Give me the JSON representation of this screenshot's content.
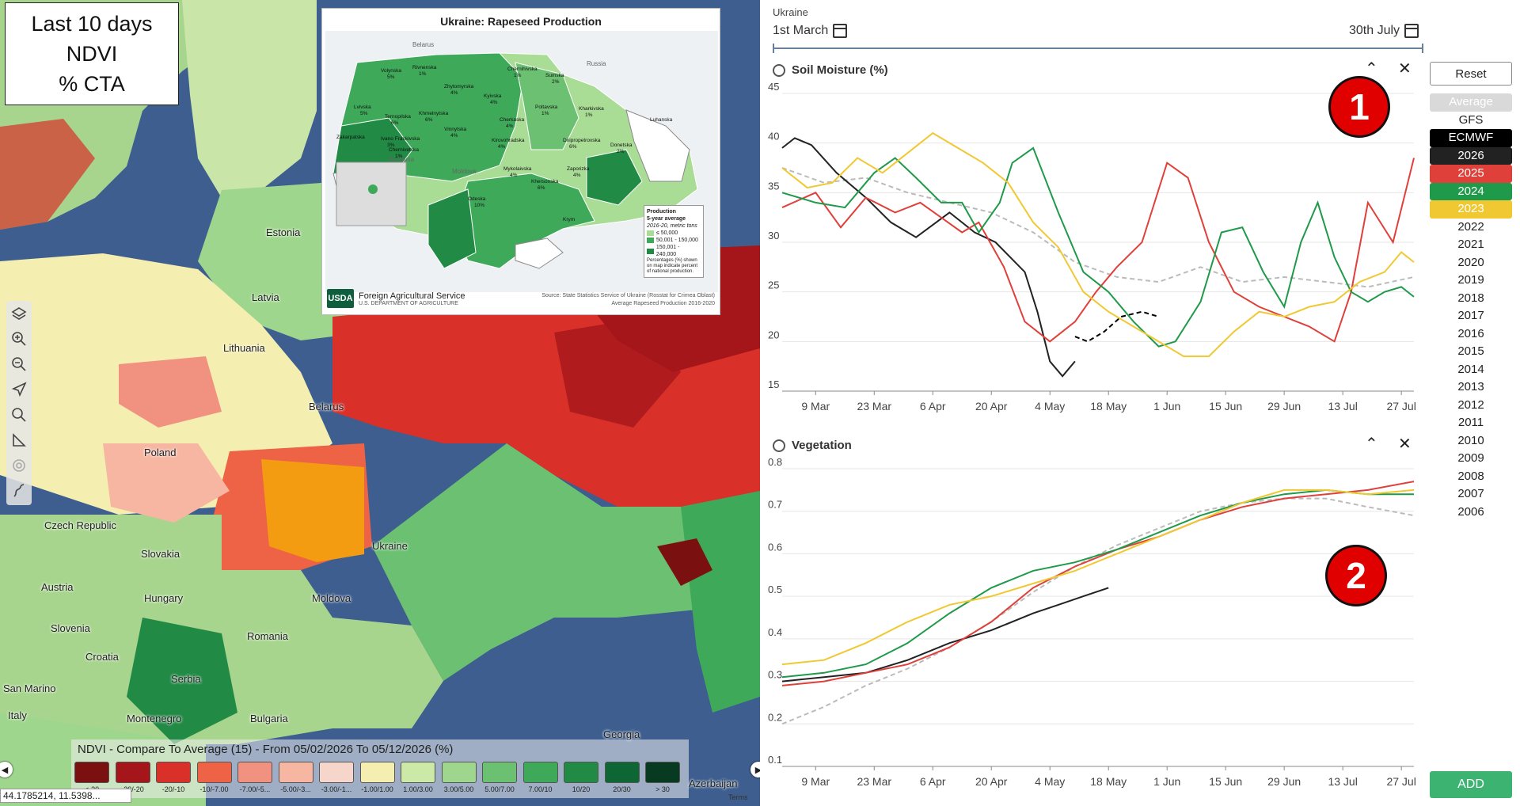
{
  "map": {
    "overlay_lines": [
      "Last 10 days",
      "NDVI",
      "% CTA"
    ],
    "inset": {
      "title": "Ukraine: Rapeseed Production",
      "regions": [
        "Volynska",
        "Rivnenska",
        "Zhytomyrska",
        "Chernihivska",
        "Sumska",
        "Lvivska",
        "Ternopilska",
        "Khmelnytska",
        "Kyivska",
        "Poltavska",
        "Kharkivska",
        "Luhanska",
        "Zakarpatska",
        "Ivano Frankivska",
        "Vinnytska",
        "Cherkaska",
        "Chernivetska",
        "Kirovohradska",
        "Dnipropetrovska",
        "Donetska",
        "Mykolaivska",
        "Zaporizka",
        "Odeska",
        "Khersonska",
        "Krym"
      ],
      "region_pcts": [
        "5%",
        "1%",
        "4%",
        "1%",
        "2%",
        "5%",
        "6%",
        "6%",
        "4%",
        "1%",
        "1%",
        "",
        "",
        "3%",
        "4%",
        "4%",
        "1%",
        "4%",
        "6%",
        "2%",
        "4%",
        "4%",
        "10%",
        "6%",
        ""
      ],
      "neighbors": [
        "Belarus",
        "Russia",
        "Romania",
        "Moldova"
      ],
      "legend": {
        "title": "Production",
        "subtitle": "5-year average",
        "unit": "2016-20, metric tons",
        "items": [
          "≤ 50,000",
          "50,001 - 150,000",
          "150,001 - 240,000"
        ],
        "note": "Percentages (%) shown on map indicate percent of national production."
      },
      "agency": "Foreign Agricultural Service",
      "agency_sub": "U.S. DEPARTMENT OF AGRICULTURE",
      "logo": "USDA",
      "source": "Source: State Statistics Service of Ukraine (Rosstat for Crimea Oblast)",
      "source2": "Average Rapeseed Production 2016-2020"
    },
    "country_labels": [
      "Estonia",
      "Latvia",
      "Lithuania",
      "Belarus",
      "Poland",
      "Ukraine",
      "Czech Republic",
      "Slovakia",
      "Austria",
      "Hungary",
      "Moldova",
      "Slovenia",
      "Croatia",
      "Romania",
      "Serbia",
      "San Marino",
      "Montenegro",
      "Bulgaria",
      "Italy",
      "Georgia",
      "Azerbaijan"
    ],
    "legend": {
      "title": "NDVI - Compare To Average (15) - From 05/02/2026 To 05/12/2026 (%)",
      "items": [
        {
          "label": "<-30",
          "color": "#7a1010"
        },
        {
          "label": "-30/-20",
          "color": "#a5161b"
        },
        {
          "label": "-20/-10",
          "color": "#d9302a"
        },
        {
          "label": "-10/-7.00",
          "color": "#ee6245"
        },
        {
          "label": "-7.00/-5...",
          "color": "#f19281"
        },
        {
          "label": "-5.00/-3...",
          "color": "#f6b6a2"
        },
        {
          "label": "-3.00/-1...",
          "color": "#f6d6cb"
        },
        {
          "label": "-1.00/1.00",
          "color": "#f4efb0"
        },
        {
          "label": "1.00/3.00",
          "color": "#cde9a8"
        },
        {
          "label": "3.00/5.00",
          "color": "#9fd68d"
        },
        {
          "label": "5.00/7.00",
          "color": "#6cc072"
        },
        {
          "label": "7.00/10",
          "color": "#3fa95a"
        },
        {
          "label": "10/20",
          "color": "#218a45"
        },
        {
          "label": "20/30",
          "color": "#0e6634"
        },
        {
          "label": "> 30",
          "color": "#083a22"
        }
      ]
    },
    "coords": "44.1785214, 11.5398...",
    "terms": "Terms"
  },
  "panel": {
    "region": "Ukraine",
    "start_date": "1st March",
    "end_date": "30th July",
    "reset": "Reset",
    "add": "ADD",
    "years": [
      {
        "label": "Average",
        "bg": "#d9d9d9",
        "fg": "#ffffff"
      },
      {
        "label": "GFS",
        "bg": "",
        "fg": "#222222"
      },
      {
        "label": "ECMWF",
        "bg": "#000000",
        "fg": "#ffffff"
      },
      {
        "label": "2026",
        "bg": "#222222",
        "fg": "#ffffff"
      },
      {
        "label": "2025",
        "bg": "#e0403a",
        "fg": "#ffffff"
      },
      {
        "label": "2024",
        "bg": "#1f9a4a",
        "fg": "#ffffff"
      },
      {
        "label": "2023",
        "bg": "#f0c832",
        "fg": "#ffffff"
      },
      {
        "label": "2022",
        "bg": "",
        "fg": "#222222"
      },
      {
        "label": "2021",
        "bg": "",
        "fg": "#222222"
      },
      {
        "label": "2020",
        "bg": "",
        "fg": "#222222"
      },
      {
        "label": "2019",
        "bg": "",
        "fg": "#222222"
      },
      {
        "label": "2018",
        "bg": "",
        "fg": "#222222"
      },
      {
        "label": "2017",
        "bg": "",
        "fg": "#222222"
      },
      {
        "label": "2016",
        "bg": "",
        "fg": "#222222"
      },
      {
        "label": "2015",
        "bg": "",
        "fg": "#222222"
      },
      {
        "label": "2014",
        "bg": "",
        "fg": "#222222"
      },
      {
        "label": "2013",
        "bg": "",
        "fg": "#222222"
      },
      {
        "label": "2012",
        "bg": "",
        "fg": "#222222"
      },
      {
        "label": "2011",
        "bg": "",
        "fg": "#222222"
      },
      {
        "label": "2010",
        "bg": "",
        "fg": "#222222"
      },
      {
        "label": "2009",
        "bg": "",
        "fg": "#222222"
      },
      {
        "label": "2008",
        "bg": "",
        "fg": "#222222"
      },
      {
        "label": "2007",
        "bg": "",
        "fg": "#222222"
      },
      {
        "label": "2006",
        "bg": "",
        "fg": "#222222"
      }
    ],
    "badges": [
      "1",
      "2"
    ]
  },
  "chart_data": [
    {
      "type": "line",
      "title": "Soil Moisture (%)",
      "x_ticks": [
        "9 Mar",
        "23 Mar",
        "6 Apr",
        "20 Apr",
        "4 May",
        "18 May",
        "1 Jun",
        "15 Jun",
        "29 Jun",
        "13 Jul",
        "27 Jul"
      ],
      "x_tick_days": [
        8,
        22,
        36,
        50,
        64,
        78,
        92,
        106,
        120,
        134,
        148
      ],
      "x_range_days": [
        0,
        151
      ],
      "ylim": [
        15,
        45
      ],
      "y_ticks": [
        15,
        20,
        25,
        30,
        35,
        40,
        45
      ],
      "series": [
        {
          "name": "Average",
          "color": "#bbbbbb",
          "dash": "6,4",
          "x": [
            0,
            10,
            20,
            30,
            40,
            50,
            60,
            70,
            80,
            90,
            100,
            110,
            120,
            130,
            140,
            151
          ],
          "y": [
            37.5,
            36,
            36.5,
            35,
            34,
            33,
            31,
            28,
            26.5,
            26,
            27.5,
            26,
            26.5,
            26,
            25.5,
            26.5
          ]
        },
        {
          "name": "2026",
          "color": "#222222",
          "dash": "",
          "x": [
            0,
            3,
            7,
            13,
            20,
            26,
            32,
            40,
            46,
            51,
            58,
            61,
            64,
            67,
            70
          ],
          "y": [
            39.5,
            40.5,
            39.8,
            37,
            34.5,
            32,
            30.5,
            33,
            31,
            30,
            27,
            23,
            18,
            16.5,
            18
          ]
        },
        {
          "name": "ECMWF",
          "color": "#000000",
          "dash": "6,4",
          "x": [
            70,
            73,
            77,
            81,
            86,
            90
          ],
          "y": [
            20.5,
            20,
            21,
            22.5,
            23,
            22.5
          ]
        },
        {
          "name": "2025",
          "color": "#e0403a",
          "dash": "",
          "x": [
            0,
            8,
            14,
            20,
            27,
            33,
            38,
            43,
            47,
            53,
            58,
            64,
            70,
            75,
            80,
            86,
            92,
            97,
            102,
            108,
            114,
            120,
            126,
            132,
            136,
            140,
            146,
            151
          ],
          "y": [
            33.5,
            35,
            31.5,
            34.5,
            33,
            34,
            32.5,
            31,
            32,
            27.5,
            22,
            20,
            22,
            25,
            27.5,
            30,
            38,
            36.5,
            30,
            25,
            23.5,
            22.5,
            21.5,
            20,
            25,
            34,
            30,
            38.5
          ]
        },
        {
          "name": "2024",
          "color": "#1f9a4a",
          "dash": "",
          "x": [
            0,
            8,
            15,
            22,
            27,
            32,
            38,
            43,
            47,
            52,
            55,
            60,
            66,
            72,
            78,
            84,
            90,
            94,
            100,
            105,
            110,
            115,
            120,
            124,
            128,
            132,
            136,
            140,
            144,
            148,
            151
          ],
          "y": [
            35,
            34,
            33.5,
            37,
            38.5,
            36.5,
            34,
            34,
            31,
            34,
            38,
            39.5,
            33,
            27,
            25,
            22,
            19.5,
            20,
            24,
            31,
            31.5,
            27,
            23.5,
            30,
            34,
            28.5,
            25,
            24,
            25,
            25.5,
            24.5
          ]
        },
        {
          "name": "2023",
          "color": "#f0c832",
          "dash": "",
          "x": [
            0,
            6,
            12,
            18,
            24,
            30,
            36,
            42,
            48,
            54,
            60,
            66,
            72,
            78,
            84,
            90,
            96,
            102,
            108,
            114,
            120,
            126,
            132,
            138,
            144,
            148,
            151
          ],
          "y": [
            37.5,
            35.5,
            36,
            38.5,
            37,
            39,
            41,
            39.5,
            38,
            36,
            32,
            29.5,
            25,
            23,
            21.5,
            20,
            18.5,
            18.5,
            21,
            23,
            22.5,
            23.5,
            24,
            26,
            27,
            29,
            28
          ]
        }
      ]
    },
    {
      "type": "line",
      "title": "Vegetation",
      "x_ticks": [
        "9 Mar",
        "23 Mar",
        "6 Apr",
        "20 Apr",
        "4 May",
        "18 May",
        "1 Jun",
        "15 Jun",
        "29 Jun",
        "13 Jul",
        "27 Jul"
      ],
      "x_tick_days": [
        8,
        22,
        36,
        50,
        64,
        78,
        92,
        106,
        120,
        134,
        148
      ],
      "x_range_days": [
        0,
        151
      ],
      "ylim": [
        0.1,
        0.8
      ],
      "y_ticks": [
        0.1,
        0.2,
        0.3,
        0.4,
        0.5,
        0.6,
        0.7,
        0.8
      ],
      "series": [
        {
          "name": "Average",
          "color": "#bbbbbb",
          "dash": "6,4",
          "x": [
            0,
            10,
            20,
            30,
            40,
            50,
            60,
            70,
            80,
            90,
            100,
            110,
            120,
            130,
            140,
            151
          ],
          "y": [
            0.2,
            0.24,
            0.29,
            0.33,
            0.38,
            0.44,
            0.51,
            0.57,
            0.62,
            0.66,
            0.7,
            0.72,
            0.73,
            0.73,
            0.71,
            0.69
          ]
        },
        {
          "name": "2026",
          "color": "#222222",
          "dash": "",
          "x": [
            0,
            10,
            20,
            30,
            40,
            50,
            60,
            66,
            72,
            78
          ],
          "y": [
            0.3,
            0.31,
            0.32,
            0.35,
            0.39,
            0.42,
            0.46,
            0.48,
            0.5,
            0.52
          ]
        },
        {
          "name": "2025",
          "color": "#e0403a",
          "dash": "",
          "x": [
            0,
            10,
            20,
            30,
            40,
            50,
            60,
            70,
            80,
            90,
            100,
            110,
            120,
            130,
            140,
            151
          ],
          "y": [
            0.29,
            0.3,
            0.32,
            0.34,
            0.38,
            0.44,
            0.52,
            0.57,
            0.61,
            0.64,
            0.68,
            0.71,
            0.73,
            0.74,
            0.75,
            0.77
          ]
        },
        {
          "name": "2024",
          "color": "#1f9a4a",
          "dash": "",
          "x": [
            0,
            10,
            20,
            30,
            40,
            50,
            60,
            70,
            80,
            90,
            100,
            110,
            120,
            130,
            140,
            151
          ],
          "y": [
            0.31,
            0.32,
            0.34,
            0.39,
            0.46,
            0.52,
            0.56,
            0.58,
            0.61,
            0.65,
            0.69,
            0.72,
            0.74,
            0.75,
            0.74,
            0.74
          ]
        },
        {
          "name": "2023",
          "color": "#f0c832",
          "dash": "",
          "x": [
            0,
            10,
            20,
            30,
            40,
            50,
            60,
            70,
            80,
            90,
            100,
            110,
            120,
            130,
            140,
            151
          ],
          "y": [
            0.34,
            0.35,
            0.39,
            0.44,
            0.48,
            0.5,
            0.53,
            0.56,
            0.6,
            0.64,
            0.68,
            0.72,
            0.75,
            0.75,
            0.74,
            0.75
          ]
        }
      ]
    }
  ]
}
